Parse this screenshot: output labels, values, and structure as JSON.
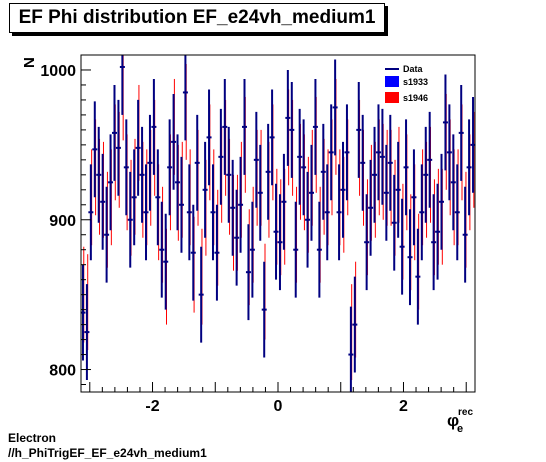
{
  "chart_data": {
    "type": "scatter",
    "title": "EF Phi distribution EF_e24vh_medium1",
    "xlabel_main": "φ",
    "xlabel_sub": "e",
    "xlabel_sup": "rec",
    "ylabel": "N",
    "xlim": [
      -3.14,
      3.14
    ],
    "ylim": [
      785,
      1010
    ],
    "x_ticks": [
      {
        "v": -2,
        "label": "-2"
      },
      {
        "v": 0,
        "label": "0"
      },
      {
        "v": 2,
        "label": "2"
      }
    ],
    "y_ticks": [
      {
        "v": 800,
        "label": "800"
      },
      {
        "v": 900,
        "label": "900"
      },
      {
        "v": 1000,
        "label": "1000"
      }
    ],
    "legend": {
      "placement": "top-right",
      "entries": [
        {
          "label": "Data",
          "color": "#000080",
          "kind": "line"
        },
        {
          "label": "s1933",
          "color": "#0000ff",
          "kind": "box"
        },
        {
          "label": "s1946",
          "color": "#ff0000",
          "kind": "box"
        }
      ]
    },
    "bins": 100,
    "data_values": [
      838,
      825,
      905,
      947,
      930,
      912,
      890,
      925,
      958,
      948,
      1002,
      935,
      900,
      915,
      948,
      930,
      905,
      938,
      962,
      915,
      880,
      872,
      935,
      952,
      925,
      910,
      985,
      905,
      878,
      938,
      850,
      920,
      955,
      905,
      878,
      942,
      962,
      930,
      908,
      888,
      910,
      962,
      865,
      880,
      940,
      918,
      840,
      932,
      955,
      892,
      885,
      912,
      968,
      960,
      880,
      942,
      935,
      900,
      918,
      962,
      880,
      932,
      905,
      945,
      975,
      905,
      920,
      945,
      810,
      830,
      960,
      938,
      885,
      908,
      930,
      945,
      942,
      918,
      938,
      898,
      920,
      882,
      935,
      875,
      915,
      862,
      905,
      930,
      940,
      885,
      892,
      912,
      965,
      945,
      925,
      905,
      958,
      890,
      935,
      950
    ],
    "s1946_values": [
      850,
      845,
      915,
      935,
      922,
      920,
      900,
      915,
      945,
      940,
      985,
      925,
      908,
      922,
      958,
      920,
      915,
      928,
      948,
      905,
      890,
      862,
      925,
      962,
      918,
      920,
      972,
      915,
      870,
      928,
      862,
      908,
      945,
      915,
      888,
      930,
      948,
      922,
      898,
      898,
      920,
      950,
      875,
      890,
      928,
      928,
      852,
      920,
      945,
      902,
      895,
      902,
      955,
      948,
      890,
      932,
      925,
      910,
      928,
      950,
      890,
      922,
      915,
      935,
      962,
      915,
      910,
      935,
      825,
      840,
      948,
      928,
      895,
      918,
      920,
      935,
      932,
      928,
      928,
      908,
      930,
      892,
      925,
      885,
      905,
      872,
      915,
      920,
      930,
      895,
      902,
      902,
      952,
      935,
      915,
      915,
      945,
      900,
      925,
      940
    ],
    "bar_half_height": 32
  },
  "footer": {
    "line1": "Electron",
    "line2": "//h_PhiTrigEF_EF_e24vh_medium1"
  }
}
